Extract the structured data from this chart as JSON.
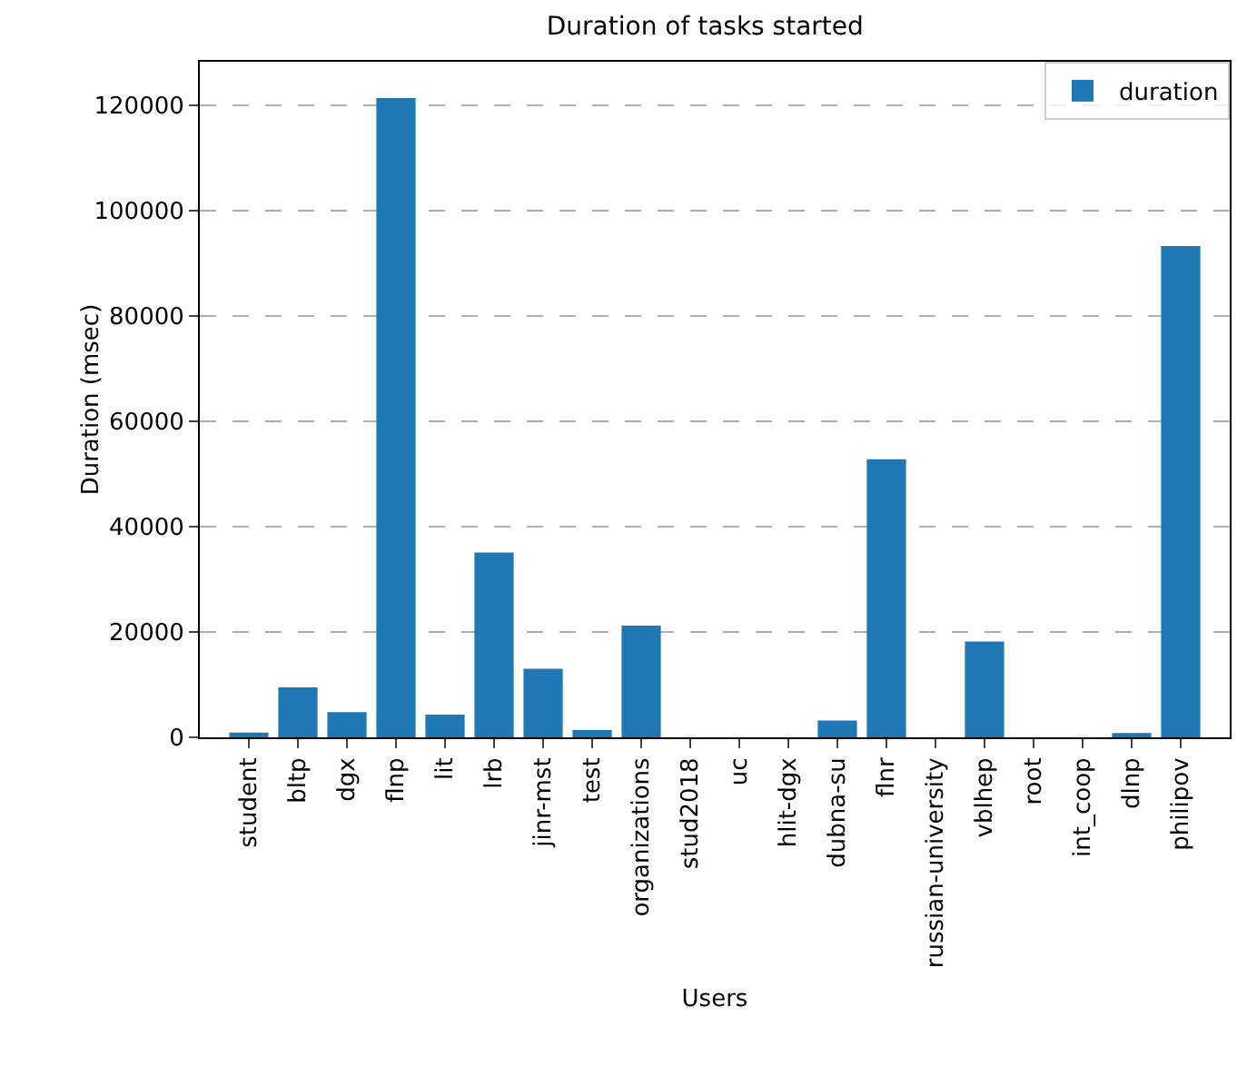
{
  "chart_data": {
    "type": "bar",
    "title": "Duration of tasks started",
    "xlabel": "Users",
    "ylabel": "Duration (msec)",
    "categories": [
      "student",
      "bltp",
      "dgx",
      "flnp",
      "lit",
      "lrb",
      "jinr-mst",
      "test",
      "organizations",
      "stud2018",
      "uc",
      "hlit-dgx",
      "dubna-su",
      "flnr",
      "russian-university",
      "vblhep",
      "root",
      "int_coop",
      "dlnp",
      "philipov"
    ],
    "series": [
      {
        "name": "duration",
        "color": "#1f77b4",
        "values": [
          900,
          9500,
          4800,
          121400,
          4300,
          35100,
          13000,
          1400,
          21200,
          0,
          0,
          0,
          3200,
          52800,
          0,
          18200,
          0,
          0,
          800,
          93300
        ]
      }
    ],
    "ylim": [
      0,
      128300
    ],
    "yticks": [
      0,
      20000,
      40000,
      60000,
      80000,
      100000,
      120000
    ],
    "grid": "y",
    "legend": "top right"
  }
}
